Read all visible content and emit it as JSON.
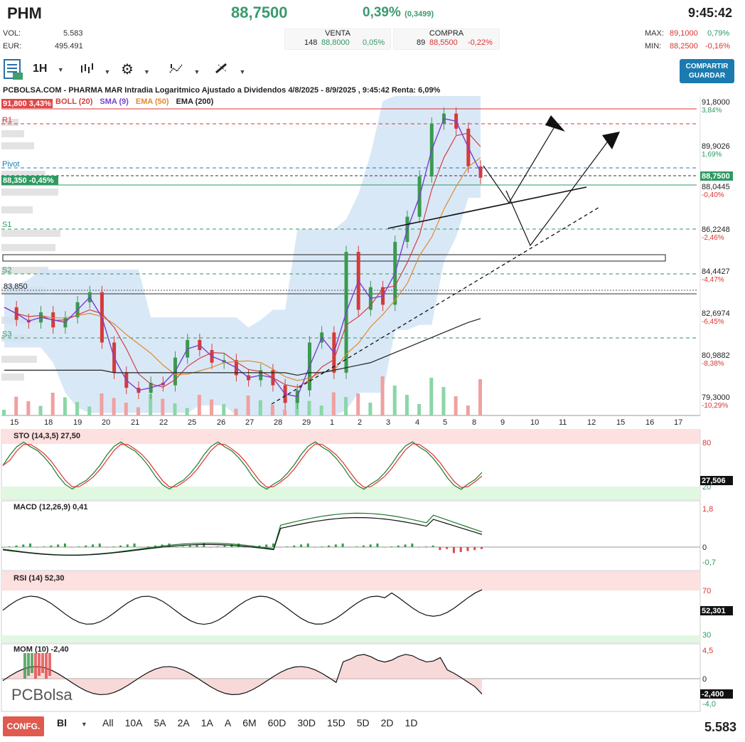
{
  "header": {
    "symbol": "PHM",
    "price": "88,7500",
    "change_pct": "0,39%",
    "change_abs": "(0,3499)",
    "time": "9:45:42",
    "vol_label": "VOL:",
    "vol_value": "5.583",
    "eur_label": "EUR:",
    "eur_value": "495.491",
    "venta_label": "VENTA",
    "venta_qty": "148",
    "venta_price": "88,8000",
    "venta_pct": "0,05%",
    "compra_label": "COMPRA",
    "compra_qty": "89",
    "compra_price": "88,5500",
    "compra_pct": "-0,22%",
    "max_label": "MAX:",
    "max_value": "89,1000",
    "max_pct": "0,79%",
    "min_label": "MIN:",
    "min_value": "88,2500",
    "min_pct": "-0,16%"
  },
  "toolbar": {
    "interval": "1H",
    "share_line1": "COMPARTIR",
    "share_line2": "GUARDAR"
  },
  "chart": {
    "title": "PCBOLSA.COM - PHARMA MAR Intradia Logaritmico Ajustado a Dividendos 4/8/2025 - 8/9/2025 , 9:45:42 Renta: 6,09%",
    "legend": [
      {
        "label": "BOLL (20)",
        "color": "#d04040"
      },
      {
        "label": "SMA (9)",
        "color": "#7a3fd0"
      },
      {
        "label": "EMA (50)",
        "color": "#e08a30"
      },
      {
        "label": "EMA (200)",
        "color": "#222222"
      }
    ],
    "tag_high": "91,800 3,43%",
    "tag_current": "88,350 -0,45%",
    "tag_price_right": "88,7500",
    "level_left": "83,850",
    "levels": [
      {
        "name": "R1",
        "color": "#d33"
      },
      {
        "name": "Pivot",
        "color": "#1b7bb0"
      },
      {
        "name": "S1",
        "color": "#2e9a62"
      },
      {
        "name": "S2",
        "color": "#2e9a62"
      },
      {
        "name": "S3",
        "color": "#2e9a62"
      }
    ],
    "price_axis": [
      {
        "price": "91,8000",
        "pct": "3,84%",
        "pct_color": "#2e9a62"
      },
      {
        "price": "89,9026",
        "pct": "1,69%",
        "pct_color": "#2e9a62"
      },
      {
        "price": "88,0445",
        "pct": "-0,40%",
        "pct_color": "#d33"
      },
      {
        "price": "86,2248",
        "pct": "-2,46%",
        "pct_color": "#d33"
      },
      {
        "price": "84,4427",
        "pct": "-4,47%",
        "pct_color": "#d33"
      },
      {
        "price": "82,6974",
        "pct": "-6,45%",
        "pct_color": "#d33"
      },
      {
        "price": "80,9882",
        "pct": "-8,38%",
        "pct_color": "#d33"
      },
      {
        "price": "79,3000",
        "pct": "-10,29%",
        "pct_color": "#d33"
      }
    ],
    "date_axis": [
      "15",
      "18",
      "19",
      "20",
      "21",
      "22",
      "25",
      "26",
      "27",
      "28",
      "29",
      "1",
      "2",
      "3",
      "4",
      "5",
      "8",
      "9",
      "10",
      "11",
      "12",
      "15",
      "16",
      "17"
    ],
    "logo": "PCBolsa"
  },
  "indicators": {
    "sto": {
      "label": "STO (14,3,5)",
      "value": "27,50",
      "axis_top": "80",
      "axis_bottom": "20",
      "tag": "27,506"
    },
    "macd": {
      "label": "MACD (12,26,9)",
      "value": "0,41",
      "axis_top": "1,8",
      "axis_mid": "0",
      "axis_bottom": "-0,7"
    },
    "rsi": {
      "label": "RSI (14)",
      "value": "52,30",
      "axis_top": "70",
      "axis_bottom": "30",
      "tag": "52,301"
    },
    "mom": {
      "label": "MOM (10)",
      "value": "-2,40",
      "axis_top": "4,5",
      "axis_mid": "0",
      "axis_bottom": "-4,0",
      "tag": "-2,400"
    }
  },
  "bottom": {
    "config": "CONFG.",
    "chart_type": "Bl",
    "periods": [
      "All",
      "10A",
      "5A",
      "2A",
      "1A",
      "A",
      "6M",
      "60D",
      "30D",
      "15D",
      "5D",
      "2D",
      "1D"
    ],
    "volume": "5.583"
  },
  "chart_data": {
    "type": "line",
    "title": "PCBOLSA.COM - PHARMA MAR Intradia Logaritmico Ajustado a Dividendos 4/8/2025 - 8/9/2025 , 9:45:42 Renta: 6,09%",
    "x_ticks": [
      "15",
      "18",
      "19",
      "20",
      "21",
      "22",
      "25",
      "26",
      "27",
      "28",
      "29",
      "1",
      "2",
      "3",
      "4",
      "5",
      "8",
      "9",
      "10",
      "11",
      "12",
      "15",
      "16",
      "17"
    ],
    "ylim": [
      79.3,
      91.8
    ],
    "y_ticks": [
      91.8,
      89.9026,
      88.0445,
      86.2248,
      84.4427,
      82.6974,
      80.9882,
      79.3
    ],
    "series": [
      {
        "name": "PHM",
        "values": [
          83.6,
          83.1,
          83.0,
          83.4,
          82.8,
          83.2,
          83.8,
          84.2,
          82.2,
          81.0,
          80.4,
          80.2,
          80.6,
          80.5,
          81.6,
          82.3,
          81.9,
          81.4,
          81.5,
          80.9,
          80.7,
          81.1,
          80.5,
          79.8,
          80.3,
          82.2,
          82.6,
          81.0,
          85.8,
          83.5,
          84.4,
          83.7,
          86.2,
          87.2,
          88.8,
          90.9,
          91.3,
          90.7,
          89.2,
          88.75
        ]
      },
      {
        "name": "EMA (200)",
        "values": [
          81.1,
          81.1,
          81.1,
          81.1,
          81.1,
          81.1,
          81.1,
          81.1,
          81.1,
          81.0,
          81.0,
          81.0,
          81.0,
          81.0,
          81.0,
          81.0,
          81.0,
          81.0,
          81.0,
          81.0,
          81.0,
          81.0,
          81.0,
          81.0,
          80.9,
          81.0,
          81.0,
          81.1,
          81.2,
          81.3,
          81.4,
          81.6,
          81.8,
          82.0,
          82.2,
          82.4,
          82.6,
          82.8,
          83.0,
          83.15
        ]
      }
    ],
    "macd_range": [
      -0.7,
      1.8
    ],
    "sto_range": [
      20,
      80
    ],
    "rsi_range": [
      30,
      70
    ],
    "mom_range": [
      -4.0,
      4.5
    ]
  }
}
